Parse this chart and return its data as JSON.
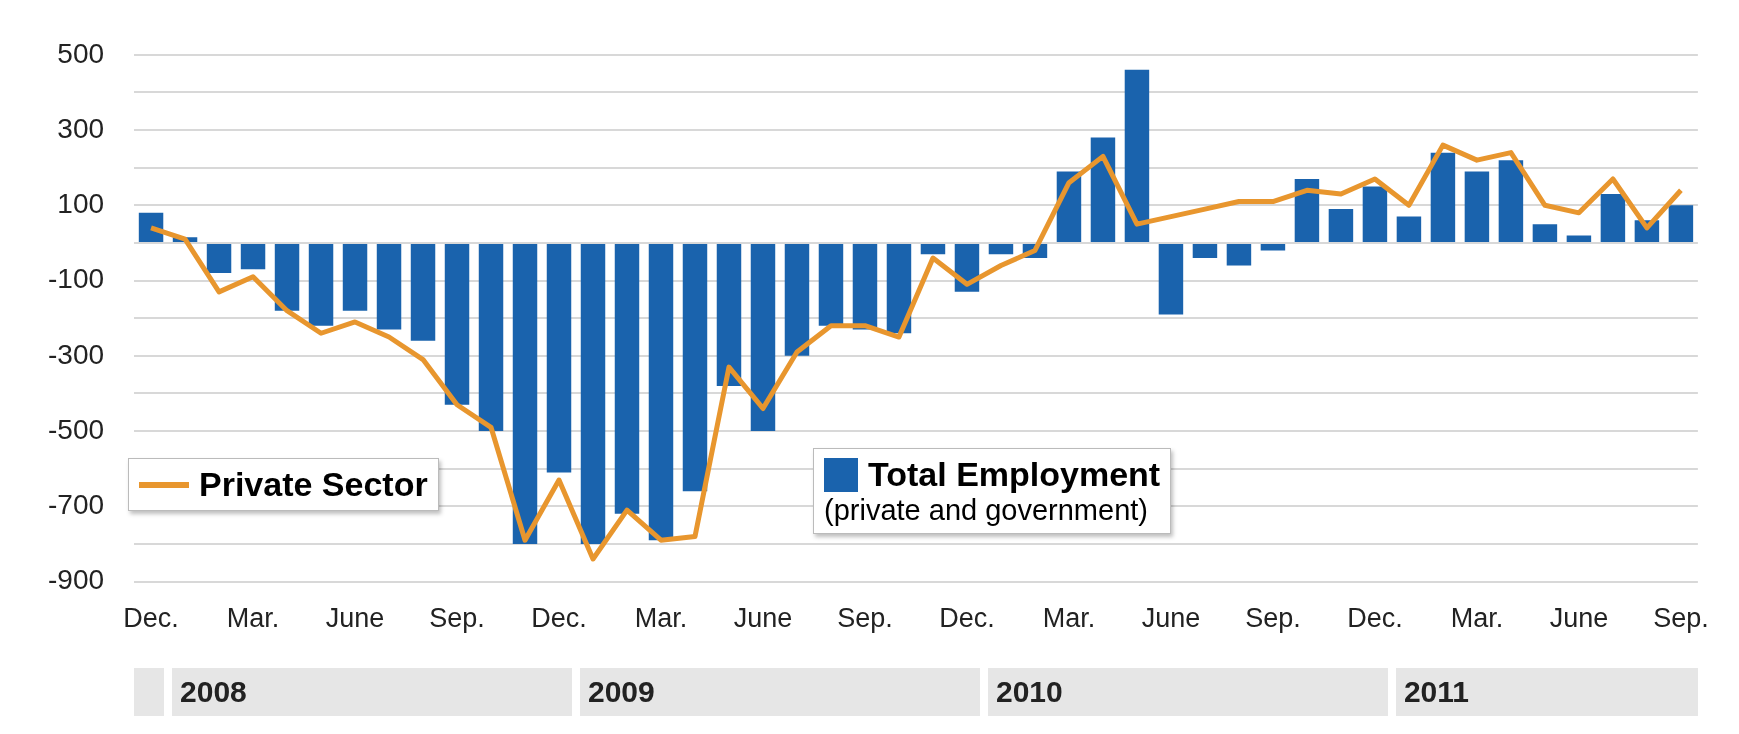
{
  "chart_data": {
    "type": "bar",
    "categories": [
      "Dec.",
      null,
      null,
      "Mar.",
      null,
      null,
      "June",
      null,
      null,
      "Sep.",
      null,
      null,
      "Dec.",
      null,
      null,
      "Mar.",
      null,
      null,
      "June",
      null,
      null,
      "Sep.",
      null,
      null,
      "Dec.",
      null,
      null,
      "Mar.",
      null,
      null,
      "June",
      null,
      null,
      "Sep.",
      null,
      null,
      "Dec.",
      null,
      null,
      "Mar.",
      null,
      null,
      "June",
      null,
      null,
      "Sep."
    ],
    "series": [
      {
        "name": "Total Employment",
        "color": "#1a63ad",
        "values": [
          80,
          15,
          -80,
          -70,
          -180,
          -220,
          -180,
          -230,
          -260,
          -430,
          -500,
          -800,
          -610,
          -800,
          -720,
          -790,
          -660,
          -380,
          -500,
          -300,
          -220,
          -230,
          -240,
          -30,
          -130,
          -30,
          -40,
          190,
          280,
          460,
          -190,
          -40,
          -60,
          -20,
          170,
          90,
          150,
          70,
          240,
          190,
          220,
          50,
          20,
          130,
          60,
          100
        ]
      },
      {
        "name": "Private Sector",
        "type": "line",
        "color": "#e8962e",
        "values": [
          40,
          10,
          -130,
          -90,
          -180,
          -240,
          -210,
          -250,
          -310,
          -430,
          -490,
          -790,
          -630,
          -840,
          -710,
          -790,
          -780,
          -330,
          -440,
          -290,
          -220,
          -220,
          -250,
          -40,
          -110,
          -60,
          -20,
          160,
          230,
          50,
          70,
          90,
          110,
          110,
          140,
          130,
          170,
          100,
          260,
          220,
          240,
          100,
          80,
          170,
          40,
          140
        ]
      }
    ],
    "ylim": [
      -900,
      500
    ],
    "yticks": [
      500,
      {
        "value": 400,
        "label": null
      },
      300,
      {
        "value": 200,
        "label": null
      },
      100,
      {
        "value": 0,
        "label": null
      },
      -100,
      {
        "value": -200,
        "label": null
      },
      -300,
      {
        "value": -400,
        "label": null
      },
      -500,
      {
        "value": -600,
        "label": null
      },
      -700,
      {
        "value": -800,
        "label": null
      },
      -900
    ],
    "grid": "y",
    "legend": "bottom",
    "marker": "none",
    "annotations": [
      "(private and government)",
      "2008",
      "2009",
      "2010",
      "2011"
    ]
  }
}
